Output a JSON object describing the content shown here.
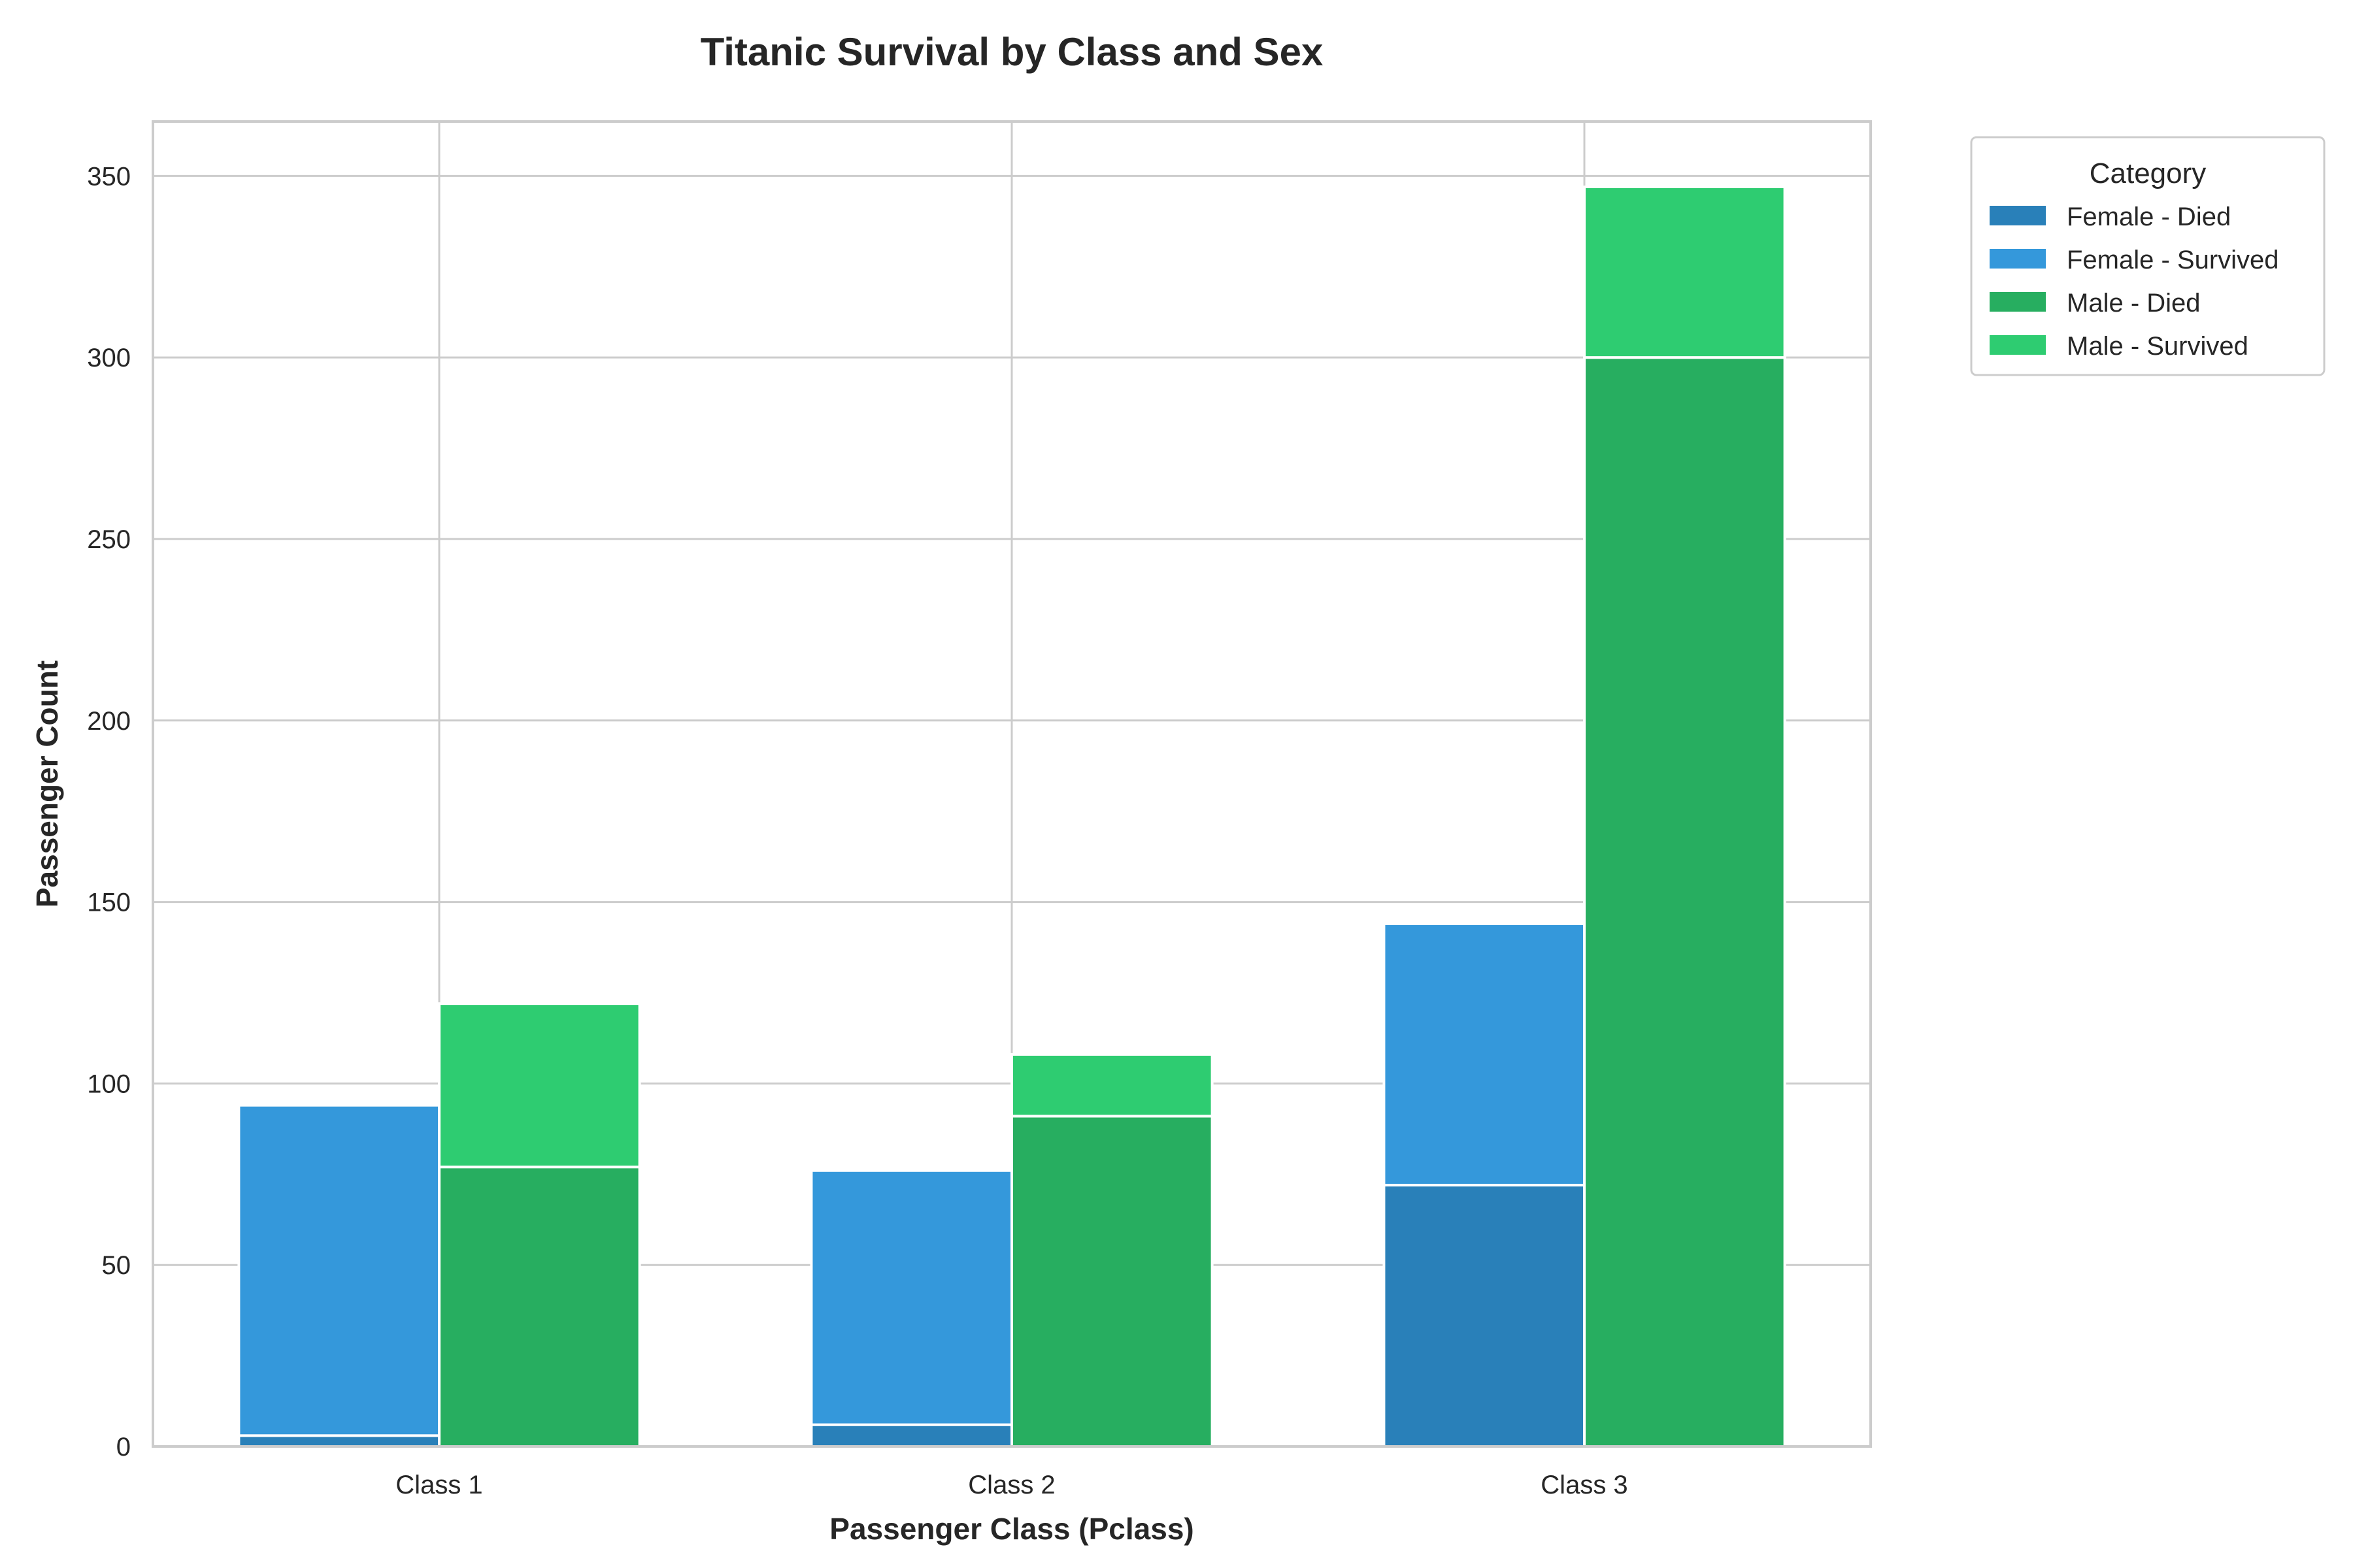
{
  "chart_data": {
    "type": "bar",
    "stacked": true,
    "grouped_by": "sex",
    "title": "Titanic Survival by Class and Sex",
    "xlabel": "Passenger Class (Pclass)",
    "ylabel": "Passenger Count",
    "categories": [
      "Class 1",
      "Class 2",
      "Class 3"
    ],
    "ylim": [
      0,
      365
    ],
    "yticks": [
      0,
      50,
      100,
      150,
      200,
      250,
      300,
      350
    ],
    "grid": true,
    "legend": {
      "title": "Category",
      "placement": "outside-top-right"
    },
    "series": [
      {
        "name": "Female - Died",
        "group": "Female",
        "values": [
          3,
          6,
          72
        ],
        "color": "#2980b9"
      },
      {
        "name": "Female - Survived",
        "group": "Female",
        "values": [
          91,
          70,
          72
        ],
        "color": "#3498db"
      },
      {
        "name": "Male - Died",
        "group": "Male",
        "values": [
          77,
          91,
          300
        ],
        "color": "#27ae60"
      },
      {
        "name": "Male - Survived",
        "group": "Male",
        "values": [
          45,
          17,
          47
        ],
        "color": "#2ecc71"
      }
    ],
    "colors": {
      "grid": "#cccccc",
      "frame": "#cccccc",
      "text": "#262626",
      "bar_edge": "#ffffff"
    }
  }
}
